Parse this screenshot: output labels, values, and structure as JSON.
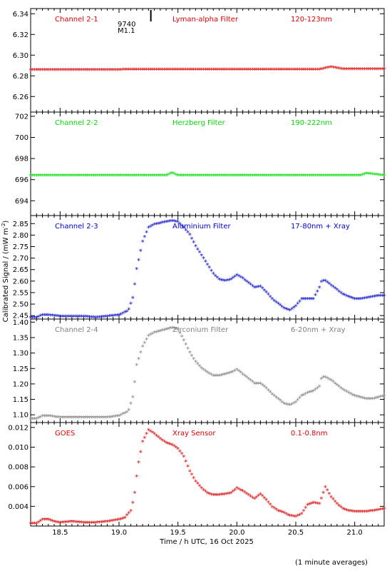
{
  "figure": {
    "ylabel_main": "Calibrated Signal / (mW m",
    "ylabel_sup": "-2",
    "ylabel_close": ")",
    "xlabel": "Time / h UTC, 16 Oct 2025",
    "footnote": "(1 minute averages)",
    "marker": {
      "label_top": "9740",
      "label_bottom": "M1.1",
      "time": 19.27
    }
  },
  "chart_data": [
    {
      "type": "scatter",
      "channel": "Channel 2-1",
      "filter": "Lyman-alpha Filter",
      "band": "120-123nm",
      "color": "#dd0000",
      "xlim": [
        18.25,
        21.25
      ],
      "ylim": [
        6.245,
        6.345
      ],
      "yticks": [
        6.26,
        6.28,
        6.3,
        6.32,
        6.34
      ],
      "ytick_labels": [
        "6.26",
        "6.28",
        "6.30",
        "6.32",
        "6.34"
      ],
      "x": [
        18.25,
        18.5,
        19.0,
        19.5,
        20.0,
        20.5,
        20.7,
        20.8,
        20.9,
        21.25
      ],
      "y": [
        6.2855,
        6.2852,
        6.2855,
        6.2858,
        6.2858,
        6.2856,
        6.2858,
        6.288,
        6.286,
        6.2862
      ]
    },
    {
      "type": "scatter",
      "channel": "Channel 2-2",
      "filter": "Herzberg Filter",
      "band": "190-222nm",
      "color": "#00dd00",
      "xlim": [
        18.25,
        21.25
      ],
      "ylim": [
        692.6,
        702.4
      ],
      "yticks": [
        694,
        696,
        698,
        700,
        702
      ],
      "ytick_labels": [
        "694",
        "696",
        "698",
        "700",
        "702"
      ],
      "x": [
        18.25,
        19.0,
        19.4,
        19.45,
        19.5,
        20.0,
        20.5,
        21.05,
        21.1,
        21.25
      ],
      "y": [
        696.35,
        696.35,
        696.35,
        696.6,
        696.35,
        696.35,
        696.35,
        696.35,
        696.55,
        696.35
      ]
    },
    {
      "type": "scatter",
      "channel": "Channel 2-3",
      "filter": "Aluminium Filter",
      "band": "17-80nm + Xray",
      "color": "#0000cc",
      "xlim": [
        18.25,
        21.25
      ],
      "ylim": [
        2.435,
        2.885
      ],
      "yticks": [
        2.45,
        2.5,
        2.55,
        2.6,
        2.65,
        2.7,
        2.75,
        2.8,
        2.85
      ],
      "ytick_labels": [
        "2.45",
        "2.50",
        "2.55",
        "2.60",
        "2.65",
        "2.70",
        "2.75",
        "2.80",
        "2.85"
      ],
      "x": [
        18.25,
        18.3,
        18.35,
        18.4,
        18.5,
        18.6,
        18.7,
        18.8,
        18.9,
        19.0,
        19.08,
        19.12,
        19.15,
        19.2,
        19.25,
        19.3,
        19.35,
        19.4,
        19.45,
        19.5,
        19.55,
        19.6,
        19.65,
        19.7,
        19.75,
        19.8,
        19.85,
        19.9,
        19.95,
        20.0,
        20.05,
        20.1,
        20.15,
        20.2,
        20.25,
        20.3,
        20.35,
        20.4,
        20.45,
        20.5,
        20.55,
        20.6,
        20.65,
        20.7,
        20.72,
        20.75,
        20.8,
        20.85,
        20.9,
        20.95,
        21.0,
        21.05,
        21.1,
        21.15,
        21.2,
        21.25
      ],
      "y": [
        2.44,
        2.44,
        2.45,
        2.45,
        2.445,
        2.445,
        2.445,
        2.44,
        2.445,
        2.45,
        2.47,
        2.53,
        2.65,
        2.77,
        2.83,
        2.845,
        2.85,
        2.855,
        2.86,
        2.855,
        2.83,
        2.8,
        2.75,
        2.71,
        2.67,
        2.63,
        2.605,
        2.6,
        2.605,
        2.625,
        2.61,
        2.59,
        2.57,
        2.575,
        2.55,
        2.52,
        2.5,
        2.48,
        2.47,
        2.49,
        2.52,
        2.52,
        2.52,
        2.57,
        2.6,
        2.6,
        2.58,
        2.56,
        2.54,
        2.53,
        2.52,
        2.52,
        2.525,
        2.53,
        2.535,
        2.535
      ]
    },
    {
      "type": "scatter",
      "channel": "Channel 2-4",
      "filter": "Zirconium Filter",
      "band": "6-20nm + Xray",
      "color": "#808080",
      "xlim": [
        18.25,
        21.25
      ],
      "ylim": [
        1.075,
        1.41
      ],
      "yticks": [
        1.1,
        1.15,
        1.2,
        1.25,
        1.3,
        1.35,
        1.4
      ],
      "ytick_labels": [
        "1.10",
        "1.15",
        "1.20",
        "1.25",
        "1.30",
        "1.35",
        "1.40"
      ],
      "x": [
        18.25,
        18.3,
        18.35,
        18.4,
        18.5,
        18.6,
        18.7,
        18.8,
        18.9,
        19.0,
        19.08,
        19.12,
        19.15,
        19.2,
        19.25,
        19.3,
        19.35,
        19.4,
        19.45,
        19.5,
        19.55,
        19.6,
        19.65,
        19.7,
        19.75,
        19.8,
        19.85,
        19.9,
        19.95,
        20.0,
        20.05,
        20.1,
        20.15,
        20.2,
        20.25,
        20.3,
        20.35,
        20.4,
        20.45,
        20.5,
        20.55,
        20.6,
        20.65,
        20.7,
        20.72,
        20.75,
        20.8,
        20.85,
        20.9,
        20.95,
        21.0,
        21.05,
        21.1,
        21.15,
        21.2,
        21.25
      ],
      "y": [
        1.085,
        1.085,
        1.095,
        1.095,
        1.09,
        1.09,
        1.09,
        1.09,
        1.09,
        1.095,
        1.11,
        1.16,
        1.26,
        1.32,
        1.355,
        1.365,
        1.37,
        1.375,
        1.38,
        1.375,
        1.34,
        1.3,
        1.27,
        1.25,
        1.235,
        1.225,
        1.225,
        1.23,
        1.235,
        1.245,
        1.23,
        1.215,
        1.2,
        1.2,
        1.185,
        1.165,
        1.15,
        1.135,
        1.13,
        1.14,
        1.16,
        1.17,
        1.175,
        1.19,
        1.22,
        1.22,
        1.21,
        1.195,
        1.18,
        1.17,
        1.16,
        1.155,
        1.15,
        1.15,
        1.155,
        1.16
      ]
    },
    {
      "type": "scatter",
      "channel": "GOES",
      "filter": "Xray Sensor",
      "band": "0.1-0.8nm",
      "color": "#dd0000",
      "xlim": [
        18.25,
        21.25
      ],
      "ylim": [
        0.002,
        0.0125
      ],
      "yticks": [
        0.004,
        0.006,
        0.008,
        0.01,
        0.012
      ],
      "ytick_labels": [
        "0.004",
        "0.006",
        "0.008",
        "0.010",
        "0.012"
      ],
      "xticks": [
        18.5,
        19.0,
        19.5,
        20.0,
        20.5,
        21.0
      ],
      "xtick_labels": [
        "18.5",
        "19.0",
        "19.5",
        "20.0",
        "20.5",
        "21.0"
      ],
      "x": [
        18.25,
        18.3,
        18.35,
        18.4,
        18.45,
        18.5,
        18.6,
        18.7,
        18.8,
        18.9,
        19.0,
        19.05,
        19.1,
        19.13,
        19.16,
        19.2,
        19.25,
        19.3,
        19.35,
        19.4,
        19.45,
        19.5,
        19.55,
        19.6,
        19.65,
        19.7,
        19.75,
        19.8,
        19.85,
        19.9,
        19.95,
        20.0,
        20.05,
        20.1,
        20.15,
        20.2,
        20.25,
        20.3,
        20.35,
        20.4,
        20.45,
        20.5,
        20.55,
        20.6,
        20.65,
        20.7,
        20.75,
        20.8,
        20.85,
        20.9,
        20.95,
        21.0,
        21.05,
        21.1,
        21.15,
        21.2,
        21.25
      ],
      "y": [
        0.0022,
        0.0022,
        0.0026,
        0.0026,
        0.0024,
        0.0023,
        0.0024,
        0.0023,
        0.0023,
        0.0024,
        0.0026,
        0.0028,
        0.0035,
        0.005,
        0.008,
        0.0105,
        0.0117,
        0.0113,
        0.0108,
        0.0104,
        0.0102,
        0.0098,
        0.009,
        0.0075,
        0.0065,
        0.0058,
        0.0053,
        0.0051,
        0.0051,
        0.0052,
        0.0053,
        0.0058,
        0.0055,
        0.0051,
        0.0047,
        0.0052,
        0.0046,
        0.0039,
        0.0035,
        0.0033,
        0.003,
        0.0029,
        0.0032,
        0.0041,
        0.0043,
        0.0042,
        0.0059,
        0.0049,
        0.0042,
        0.0037,
        0.0035,
        0.0034,
        0.0034,
        0.0034,
        0.0035,
        0.0036,
        0.0037
      ]
    }
  ]
}
